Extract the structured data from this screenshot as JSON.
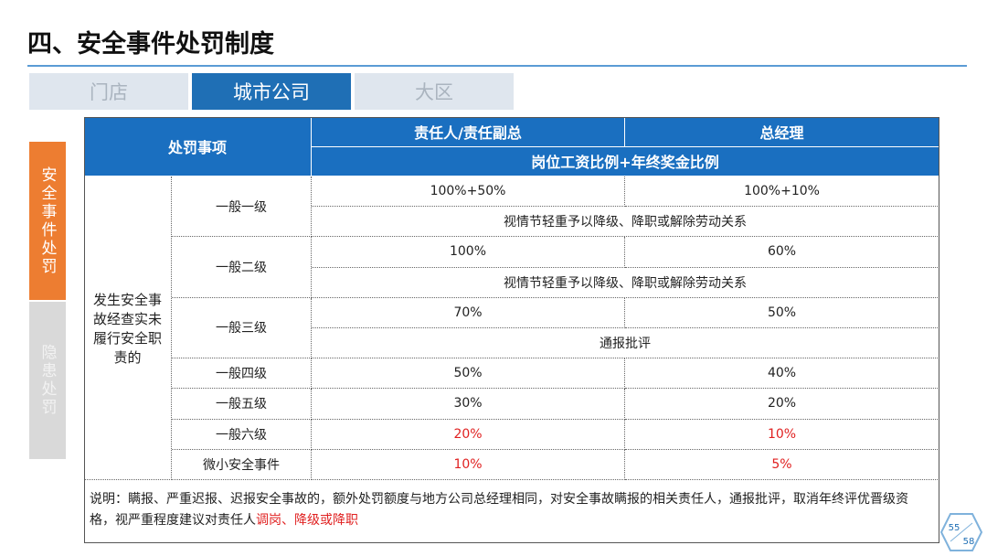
{
  "header": {
    "title": "四、安全事件处罚制度"
  },
  "tabs": {
    "items": [
      "门店",
      "城市公司",
      "大区"
    ],
    "active": 1
  },
  "side_tabs": {
    "items": [
      "安全事件处罚",
      "隐患处罚"
    ],
    "active": 0
  },
  "table": {
    "head": {
      "item": "处罚事项",
      "col1": "责任人/责任副总",
      "col2": "总经理",
      "sub": "岗位工资比例+年终奖金比例"
    },
    "group": "发生安全事故经查实未履行安全职责的",
    "rows": [
      {
        "level": "一般一级",
        "values": [
          "100%+50%",
          "100%+10%"
        ],
        "remark": "视情节轻重予以降级、降职或解除劳动关系"
      },
      {
        "level": "一般二级",
        "values": [
          "100%",
          "60%"
        ],
        "remark": "视情节轻重予以降级、降职或解除劳动关系"
      },
      {
        "level": "一般三级",
        "values": [
          "70%",
          "50%"
        ],
        "remark": "通报批评"
      },
      {
        "level": "一般四级",
        "values": [
          "50%",
          "40%"
        ]
      },
      {
        "level": "一般五级",
        "values": [
          "30%",
          "20%"
        ]
      },
      {
        "level": "一般六级",
        "values": [
          "20%",
          "10%"
        ],
        "color": "#e02020"
      },
      {
        "level": "微小安全事件",
        "values": [
          "10%",
          "5%"
        ],
        "color": "#e02020"
      }
    ],
    "note": {
      "text": "说明：瞒报、严重迟报、迟报安全事故的，额外处罚额度与地方公司总经理相同，对安全事故瞒报的相关责任人，通报批评，取消年终评优晋级资格，视严重程度建议对责任人",
      "highlight": "调岗、降级或降职",
      "highlight_color": "#e02020"
    }
  },
  "page": {
    "current": "55",
    "total": "58"
  }
}
